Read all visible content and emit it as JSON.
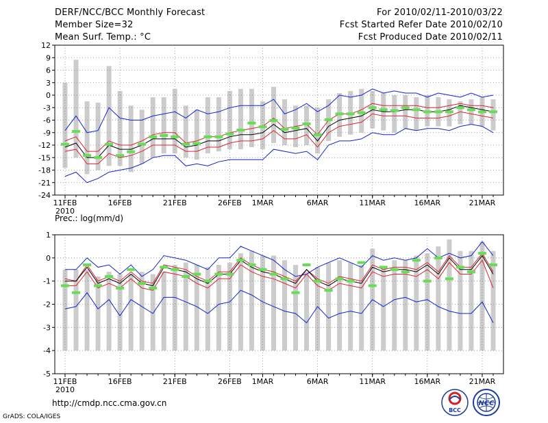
{
  "header": {
    "title": "DERF/NCC/BCC Monthly Forecast",
    "member_size": "Member Size=32",
    "variable": "Mean Surf. Temp.: °C",
    "period": "For 2010/02/11-2010/03/22",
    "refer_date": "Fcst Started Refer Date 2010/02/10",
    "produced_date": "Fcst Produced Date 2010/02/11"
  },
  "footer": {
    "url": "http://cmdp.ncc.cma.gov.cn",
    "grads": "GrADS: COLA/IGES",
    "logo_left_text": "BCC",
    "logo_right_text": "NCC"
  },
  "colors": {
    "bar": "#cccccc",
    "obs": "#66dd55",
    "mean": "#000000",
    "inner": "#dd2233",
    "outer": "#1122cc",
    "grid": "#888888"
  },
  "chart_data": [
    {
      "type": "box-plume",
      "title": "Mean Surf. Temp.: °C",
      "x_dates": [
        "11FEB",
        "12FEB",
        "13FEB",
        "14FEB",
        "15FEB",
        "16FEB",
        "17FEB",
        "18FEB",
        "19FEB",
        "20FEB",
        "21FEB",
        "22FEB",
        "23FEB",
        "24FEB",
        "25FEB",
        "26FEB",
        "27FEB",
        "28FEB",
        "1MAR",
        "2MAR",
        "3MAR",
        "4MAR",
        "5MAR",
        "6MAR",
        "7MAR",
        "8MAR",
        "9MAR",
        "10MAR",
        "11MAR",
        "12MAR",
        "13MAR",
        "14MAR",
        "15MAR",
        "16MAR",
        "17MAR",
        "18MAR",
        "19MAR",
        "20MAR",
        "21MAR",
        "22MAR"
      ],
      "xtick_labels": [
        "11FEB",
        "16FEB",
        "21FEB",
        "26FEB",
        "1MAR",
        "6MAR",
        "11MAR",
        "16MAR",
        "21MAR"
      ],
      "xtick_indices": [
        0,
        5,
        10,
        15,
        18,
        23,
        28,
        33,
        38
      ],
      "year_label": "2010",
      "ylim": [
        -24,
        12
      ],
      "yticks": [
        -24,
        -21,
        -18,
        -15,
        -12,
        -9,
        -6,
        -3,
        0,
        3,
        6,
        9,
        12
      ],
      "series": [
        {
          "name": "ensemble_range_top",
          "values": [
            3,
            8.5,
            -1.5,
            -1.8,
            7,
            1,
            -2.5,
            -3.5,
            -0.5,
            -0.5,
            1.5,
            -2.5,
            -3.5,
            -0.5,
            -0.5,
            1,
            1.5,
            1.5,
            -1.5,
            2,
            -1,
            -2.5,
            -2.5,
            -3,
            -1,
            0.5,
            1,
            1.5,
            1,
            0.5,
            0,
            0,
            -0.5,
            0,
            -0.5,
            -1,
            -1.5,
            -1,
            -0.5,
            -1
          ]
        },
        {
          "name": "ensemble_range_bottom",
          "values": [
            -17.5,
            -15,
            -19,
            -18,
            -17,
            -17,
            -18.5,
            -16.5,
            -15,
            -14,
            -14,
            -15,
            -15.5,
            -14,
            -13.5,
            -13,
            -13,
            -12.5,
            -13,
            -11.5,
            -12,
            -12.5,
            -12,
            -14,
            -11,
            -10,
            -9.5,
            -9,
            -8,
            -8.5,
            -9,
            -8,
            -8.5,
            -7.5,
            -7.5,
            -7.5,
            -7,
            -7,
            -7.5,
            -8.5
          ]
        },
        {
          "name": "max_envelope",
          "values": [
            -8.5,
            -5,
            -9,
            -8.5,
            -3,
            -5.5,
            -6,
            -6,
            -5,
            -4.5,
            -4,
            -5.5,
            -3.5,
            -4.5,
            -4,
            -3,
            -2.5,
            -2.5,
            -2.5,
            -1,
            -4.5,
            -3.5,
            -2,
            -4,
            -2.5,
            0,
            -0.5,
            0,
            1.5,
            0.5,
            1,
            0.5,
            0.5,
            -0.5,
            0.5,
            0,
            -0.5,
            0.5,
            -0.5,
            0
          ]
        },
        {
          "name": "upper_band",
          "values": [
            -11,
            -10,
            -13.5,
            -13.5,
            -11,
            -12,
            -12,
            -11,
            -9.5,
            -9,
            -9,
            -11.5,
            -11,
            -10,
            -10,
            -9,
            -8.5,
            -8,
            -7.5,
            -5.5,
            -8,
            -7.5,
            -7,
            -9.5,
            -6,
            -4.5,
            -4.5,
            -3.5,
            -2,
            -2.5,
            -2.5,
            -2.5,
            -2.5,
            -3,
            -3,
            -2.5,
            -2,
            -2.5,
            -2.5,
            -3
          ]
        },
        {
          "name": "ensemble_mean",
          "values": [
            -12.5,
            -11.5,
            -15,
            -15,
            -12,
            -13,
            -13,
            -12,
            -10.5,
            -10.5,
            -10.5,
            -12.5,
            -12,
            -11,
            -11,
            -10,
            -9.5,
            -9.5,
            -9,
            -7,
            -9,
            -8.5,
            -8,
            -11,
            -7.5,
            -6,
            -5.5,
            -5,
            -3.5,
            -4,
            -4,
            -3.5,
            -3.5,
            -4,
            -4,
            -3.5,
            -2.5,
            -3,
            -3.5,
            -4
          ]
        },
        {
          "name": "lower_band",
          "values": [
            -13.5,
            -13,
            -16.5,
            -16.5,
            -14,
            -15,
            -14.5,
            -13.5,
            -12,
            -12,
            -12,
            -13.5,
            -13.5,
            -12.5,
            -12.5,
            -11.5,
            -11,
            -11,
            -10.5,
            -8.5,
            -10.5,
            -10.5,
            -9.5,
            -12.5,
            -9,
            -7.5,
            -7,
            -6.5,
            -4.5,
            -5,
            -5,
            -5,
            -5.5,
            -5.5,
            -5.5,
            -5,
            -4,
            -4.5,
            -5,
            -5.5
          ]
        },
        {
          "name": "min_envelope",
          "values": [
            -19.5,
            -18.5,
            -21,
            -20,
            -18.5,
            -18,
            -17.5,
            -16.5,
            -15,
            -14.5,
            -14.5,
            -17,
            -16.5,
            -17,
            -16,
            -15.5,
            -15.5,
            -15.5,
            -15.5,
            -13,
            -13.5,
            -14,
            -13.5,
            -15.5,
            -12,
            -11,
            -11,
            -10.5,
            -9,
            -9.5,
            -9.5,
            -8,
            -8.5,
            -8,
            -8,
            -8.5,
            -7.5,
            -7,
            -7.5,
            -9
          ]
        },
        {
          "name": "observed",
          "values": [
            -11.8,
            -8.7,
            -14.5,
            -15,
            -11.8,
            -14.5,
            -13.6,
            -11.8,
            -10,
            -9.7,
            -10,
            -11.8,
            -11.6,
            -10,
            -10,
            -9.3,
            -8.4,
            -6.7,
            -7.6,
            -6.1,
            -8.2,
            -7.9,
            -6.9,
            -9.5,
            -5.9,
            -4.5,
            -4.5,
            -4.2,
            -3,
            -3.5,
            -3.7,
            -3,
            -3.5,
            -4,
            -4,
            -4,
            -3,
            -3.5,
            -4,
            -4
          ]
        }
      ]
    },
    {
      "type": "box-plume",
      "title": "Prec.: log(mm/d)",
      "x_dates": [
        "11FEB",
        "12FEB",
        "13FEB",
        "14FEB",
        "15FEB",
        "16FEB",
        "17FEB",
        "18FEB",
        "19FEB",
        "20FEB",
        "21FEB",
        "22FEB",
        "23FEB",
        "24FEB",
        "25FEB",
        "26FEB",
        "27FEB",
        "28FEB",
        "1MAR",
        "2MAR",
        "3MAR",
        "4MAR",
        "5MAR",
        "6MAR",
        "7MAR",
        "8MAR",
        "9MAR",
        "10MAR",
        "11MAR",
        "12MAR",
        "13MAR",
        "14MAR",
        "15MAR",
        "16MAR",
        "17MAR",
        "18MAR",
        "19MAR",
        "20MAR",
        "21MAR",
        "22MAR"
      ],
      "xtick_labels": [
        "11FEB",
        "16FEB",
        "21FEB",
        "26FEB",
        "1MAR",
        "6MAR",
        "11MAR",
        "16MAR",
        "21MAR"
      ],
      "xtick_indices": [
        0,
        5,
        10,
        15,
        18,
        23,
        28,
        33,
        38
      ],
      "year_label": "2010",
      "ylim": [
        -5,
        1
      ],
      "yticks": [
        -5,
        -4,
        -3,
        -2,
        -1,
        0,
        1
      ],
      "series": [
        {
          "name": "ensemble_range_top",
          "values": [
            -0.5,
            -0.5,
            -0.5,
            -0.8,
            -0.6,
            -0.7,
            -0.7,
            -0.6,
            -0.7,
            -0.6,
            -0.3,
            -0.2,
            -0.3,
            -0.4,
            -0.3,
            -0.2,
            0.2,
            0.3,
            0.1,
            0.1,
            -0.1,
            -0.3,
            -0.6,
            -0.4,
            -0.2,
            -0.1,
            -0.2,
            -0.3,
            0.4,
            -0.4,
            -0.1,
            -0.1,
            0.1,
            0.2,
            0.5,
            0.8,
            0.3,
            0.3,
            0.7,
            0.3
          ]
        },
        {
          "name": "ensemble_range_bottom",
          "values": [
            -4,
            -4,
            -4,
            -4,
            -4,
            -4,
            -4,
            -4,
            -4,
            -4,
            -4,
            -4,
            -4,
            -4,
            -4,
            -4,
            -4,
            -4,
            -4,
            -4,
            -4,
            -4,
            -4,
            -4,
            -4,
            -4,
            -4,
            -4,
            -4,
            -4,
            -4,
            -4,
            -4,
            -4,
            -4,
            -4,
            -4,
            -4,
            -4,
            -4
          ]
        },
        {
          "name": "max_envelope",
          "values": [
            -0.5,
            -0.5,
            0,
            -0.4,
            -0.3,
            -0.7,
            -0.3,
            -0.8,
            -0.5,
            0.1,
            0,
            -0.1,
            -0.3,
            -0.5,
            0,
            0,
            0.5,
            0.3,
            0.1,
            -0.1,
            -0.5,
            -0.8,
            -0.7,
            -0.4,
            -0.2,
            0,
            -0.2,
            -0.4,
            0.1,
            -0.1,
            0,
            -0.1,
            0,
            0.4,
            0,
            0.2,
            0,
            0.1,
            0.7,
            0.1
          ]
        },
        {
          "name": "upper_band",
          "values": [
            -0.9,
            -1.0,
            -0.3,
            -1.0,
            -0.8,
            -1.0,
            -0.6,
            -1.0,
            -1.1,
            -0.3,
            -0.4,
            -0.5,
            -0.8,
            -1.0,
            -0.6,
            -0.6,
            0,
            -0.3,
            -0.5,
            -0.6,
            -0.8,
            -1.0,
            -0.5,
            -0.9,
            -1.1,
            -0.8,
            -0.9,
            -1.0,
            -0.3,
            -0.5,
            -0.4,
            -0.4,
            -0.5,
            -0.2,
            -0.6,
            0.1,
            -0.4,
            -0.4,
            0.2,
            -0.6
          ]
        },
        {
          "name": "ensemble_mean",
          "values": [
            -1.0,
            -1.0,
            -0.4,
            -1.1,
            -0.9,
            -1.1,
            -0.7,
            -1.1,
            -1.2,
            -0.4,
            -0.5,
            -0.6,
            -0.9,
            -1.1,
            -0.7,
            -0.7,
            -0.1,
            -0.4,
            -0.6,
            -0.7,
            -0.9,
            -1.1,
            -0.5,
            -1.0,
            -1.2,
            -0.9,
            -1.0,
            -1.1,
            -0.4,
            -0.6,
            -0.5,
            -0.5,
            -0.6,
            -0.3,
            -0.7,
            0,
            -0.5,
            -0.5,
            0.1,
            -0.7
          ]
        },
        {
          "name": "lower_band",
          "values": [
            -1.2,
            -1.2,
            -0.6,
            -1.3,
            -1.1,
            -1.3,
            -0.9,
            -1.3,
            -1.4,
            -0.6,
            -0.7,
            -0.8,
            -1.1,
            -1.3,
            -0.9,
            -0.9,
            -0.3,
            -0.6,
            -0.8,
            -0.9,
            -1.1,
            -1.3,
            -0.7,
            -1.2,
            -1.4,
            -1.1,
            -1.2,
            -1.3,
            -0.6,
            -0.8,
            -0.7,
            -0.7,
            -0.8,
            -0.5,
            -0.9,
            -0.2,
            -0.7,
            -0.7,
            -0.1,
            -1.3
          ]
        },
        {
          "name": "min_envelope",
          "values": [
            -2.2,
            -2.1,
            -1.5,
            -2.2,
            -1.8,
            -2.5,
            -1.8,
            -2.1,
            -2.4,
            -1.7,
            -1.7,
            -1.9,
            -2.1,
            -2.4,
            -2.0,
            -1.9,
            -1.4,
            -1.6,
            -1.9,
            -2.1,
            -2.3,
            -2.4,
            -2.8,
            -2.1,
            -2.6,
            -2.4,
            -2.3,
            -2.4,
            -1.8,
            -2.1,
            -1.8,
            -1.7,
            -1.9,
            -1.8,
            -2.1,
            -2.3,
            -2.4,
            -2.4,
            -1.9,
            -2.8
          ]
        },
        {
          "name": "observed",
          "values": [
            -1.2,
            -1.5,
            -0.3,
            -1.2,
            -0.8,
            -1.3,
            -0.5,
            -1.1,
            -1.3,
            -0.4,
            -0.5,
            -0.8,
            -0.7,
            -1.0,
            -0.7,
            -0.7,
            -0.1,
            -0.3,
            -0.5,
            -0.7,
            -0.9,
            -1.5,
            -0.3,
            -1.0,
            -1.4,
            -0.9,
            -1.0,
            -0.2,
            -1.2,
            -0.4,
            -0.5,
            -0.6,
            -0.1,
            -1.0,
            0,
            -0.9,
            -0.4,
            -0.6,
            0.2,
            -0.3
          ]
        }
      ]
    }
  ]
}
